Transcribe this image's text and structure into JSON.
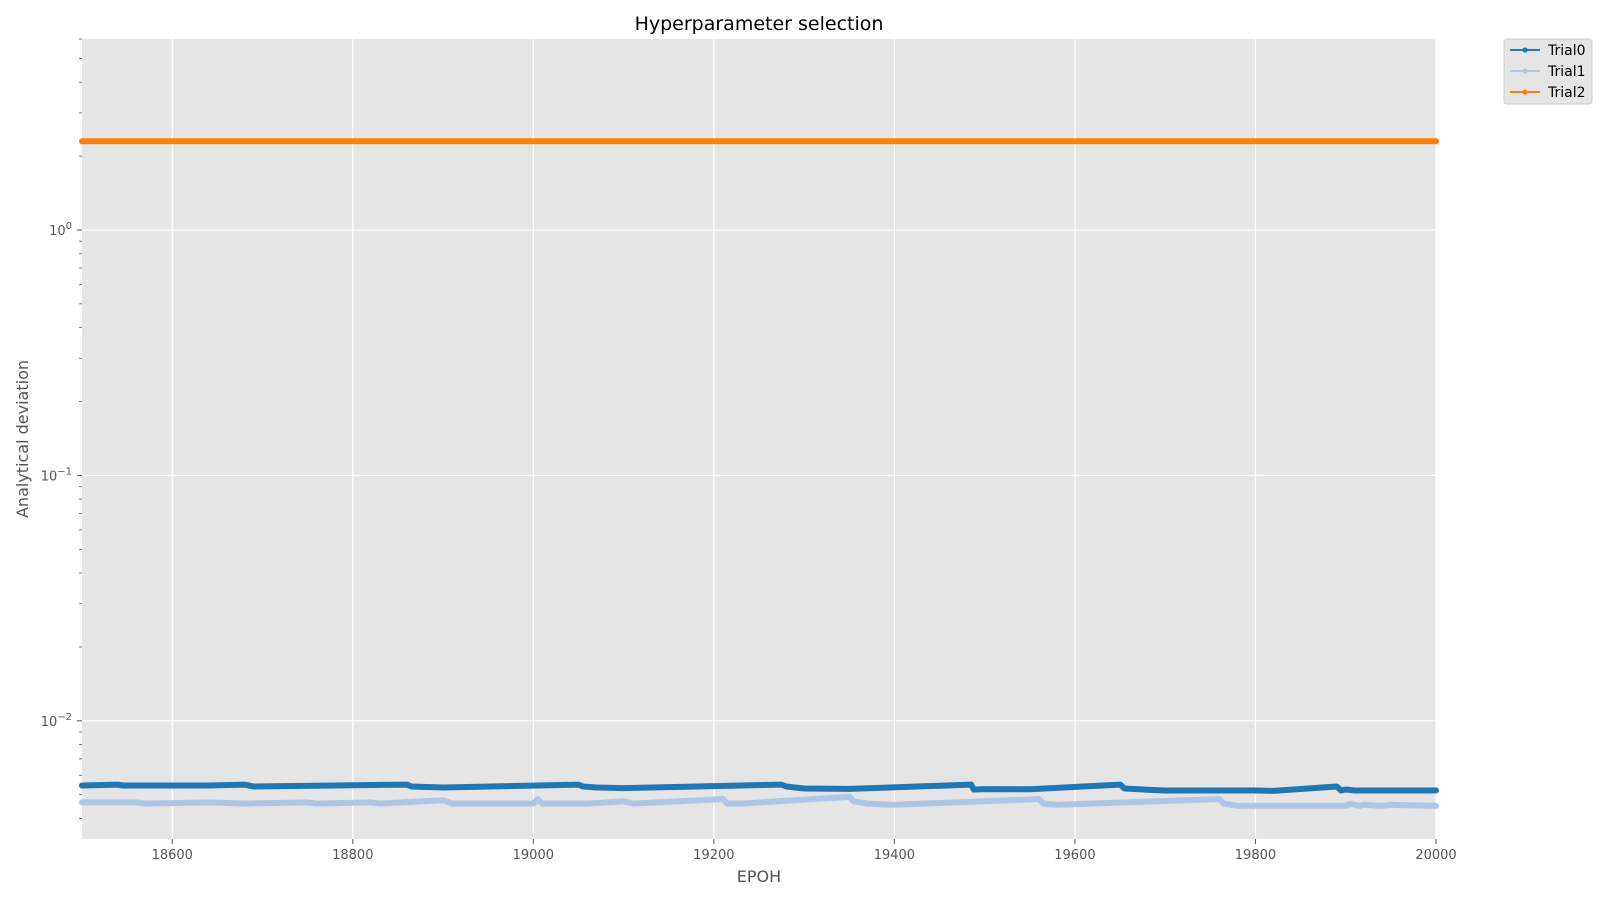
{
  "chart_data": {
    "type": "line",
    "title": "Hyperparameter selection",
    "xlabel": "EPOH",
    "ylabel": "Analytical deviation",
    "yscale": "log",
    "xlim": [
      18500,
      20000
    ],
    "ylim": [
      0.0033,
      6.0
    ],
    "x_ticks": [
      18600,
      18800,
      19000,
      19200,
      19400,
      19600,
      19800,
      20000
    ],
    "x_tick_labels": [
      "18600",
      "18800",
      "19000",
      "19200",
      "19400",
      "19600",
      "19800",
      "20000"
    ],
    "y_ticks": [
      0.01,
      0.1,
      1
    ],
    "y_tick_labels": [
      {
        "base": "10",
        "exp": "−2"
      },
      {
        "base": "10",
        "exp": "−1"
      },
      {
        "base": "10",
        "exp": "0"
      }
    ],
    "grid": true,
    "legend_position": "outside-top-right",
    "series": [
      {
        "name": "Trial0",
        "color": "#1f77b4",
        "x": [
          18500,
          18540,
          18545,
          18640,
          18680,
          18685,
          18690,
          18860,
          18865,
          18900,
          19050,
          19055,
          19070,
          19100,
          19275,
          19280,
          19300,
          19350,
          19485,
          19488,
          19500,
          19550,
          19650,
          19655,
          19680,
          19700,
          19800,
          19820,
          19890,
          19895,
          19900,
          19910,
          19920,
          20000
        ],
        "values": [
          0.00545,
          0.0055,
          0.00545,
          0.00545,
          0.0055,
          0.00545,
          0.0054,
          0.0055,
          0.0054,
          0.00535,
          0.0055,
          0.0054,
          0.00535,
          0.00532,
          0.0055,
          0.0054,
          0.0053,
          0.00528,
          0.0055,
          0.00525,
          0.00527,
          0.00526,
          0.0055,
          0.0053,
          0.00524,
          0.0052,
          0.0052,
          0.00518,
          0.0054,
          0.0052,
          0.00525,
          0.0052,
          0.0052,
          0.0052
        ]
      },
      {
        "name": "Trial1",
        "color": "#aec7e8",
        "x": [
          18500,
          18560,
          18570,
          18640,
          18680,
          18750,
          18760,
          18820,
          18830,
          18900,
          18910,
          19000,
          19005,
          19010,
          19060,
          19100,
          19110,
          19210,
          19215,
          19230,
          19350,
          19355,
          19370,
          19400,
          19560,
          19565,
          19580,
          19760,
          19765,
          19780,
          19800,
          19900,
          19905,
          19915,
          19920,
          19940,
          19950,
          20000
        ],
        "values": [
          0.00465,
          0.00465,
          0.0046,
          0.00465,
          0.0046,
          0.00465,
          0.0046,
          0.00465,
          0.0046,
          0.00475,
          0.0046,
          0.0046,
          0.0048,
          0.0046,
          0.0046,
          0.0047,
          0.0046,
          0.0048,
          0.0046,
          0.0046,
          0.0049,
          0.0047,
          0.0046,
          0.00455,
          0.0048,
          0.0046,
          0.00455,
          0.0048,
          0.0046,
          0.0045,
          0.0045,
          0.0045,
          0.0046,
          0.0045,
          0.00455,
          0.0045,
          0.00455,
          0.0045
        ]
      },
      {
        "name": "Trial2",
        "color": "#ff7f0e",
        "x": [
          18500,
          20000
        ],
        "values": [
          2.3,
          2.3
        ]
      }
    ]
  }
}
